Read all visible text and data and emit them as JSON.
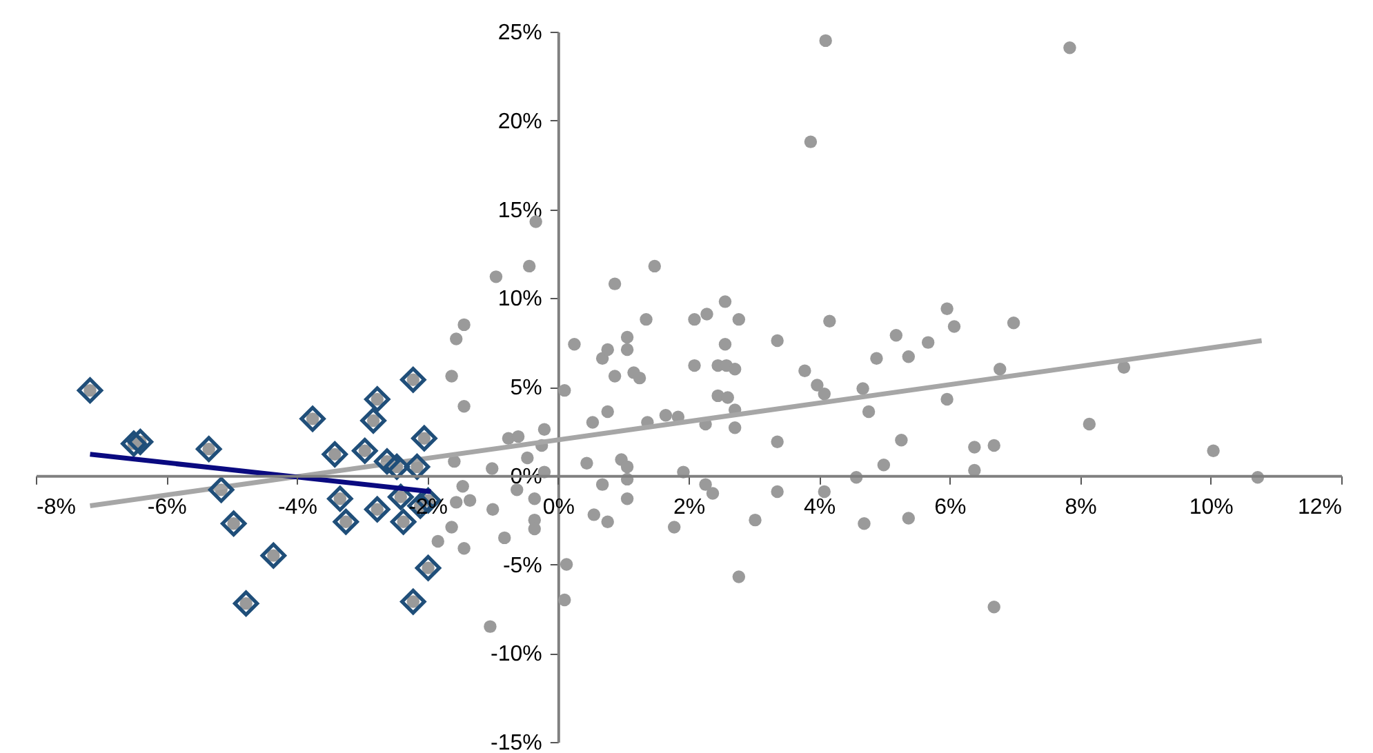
{
  "chart_data": {
    "type": "scatter",
    "xlim": [
      -8,
      12
    ],
    "ylim": [
      -15,
      25
    ],
    "xticks": [
      {
        "value": -8,
        "label": "-8%"
      },
      {
        "value": -6,
        "label": "-6%"
      },
      {
        "value": -4,
        "label": "-4%"
      },
      {
        "value": -2,
        "label": "-2%"
      },
      {
        "value": 0,
        "label": "0%"
      },
      {
        "value": 2,
        "label": "2%"
      },
      {
        "value": 4,
        "label": "4%"
      },
      {
        "value": 6,
        "label": "6%"
      },
      {
        "value": 8,
        "label": "8%"
      },
      {
        "value": 10,
        "label": "10%"
      },
      {
        "value": 12,
        "label": "12%"
      }
    ],
    "yticks": [
      {
        "value": -15,
        "label": "-15%"
      },
      {
        "value": -10,
        "label": "-10%"
      },
      {
        "value": -5,
        "label": "-5%"
      },
      {
        "value": 0,
        "label": "0%"
      },
      {
        "value": 5,
        "label": "5%"
      },
      {
        "value": 10,
        "label": "10%"
      },
      {
        "value": 15,
        "label": "15%"
      },
      {
        "value": 20,
        "label": "20%"
      },
      {
        "value": 25,
        "label": "25%"
      }
    ],
    "grid": false,
    "series": [
      {
        "type": "scatter",
        "marker": "circle",
        "color": "#9a9a9a",
        "x": [
          -7.17,
          -6.5,
          -6.4,
          -5.35,
          -5.16,
          -4.97,
          -4.36,
          -4.78,
          -3.76,
          -3.42,
          -3.34,
          -3.25,
          -2.96,
          -2.83,
          -2.77,
          -2.77,
          -2.62,
          -2.47,
          -2.22,
          -2.05,
          -2.41,
          -2.37,
          -2.11,
          -1.99,
          -1.99,
          -2.22,
          -2.16,
          -1.63,
          -1.44,
          -0.95,
          -0.44,
          -1.44,
          -1.56,
          -0.76,
          -0.61,
          -0.21,
          -0.25,
          -0.21,
          -0.47,
          -0.63,
          -1.0,
          -1.01,
          -1.35,
          -1.46,
          -1.56,
          -1.59,
          -1.63,
          -1.44,
          -1.84,
          -0.82,
          -0.36,
          -0.36,
          -0.36,
          -1.04,
          -0.34,
          0.1,
          0.13,
          0.1,
          0.25,
          0.44,
          0.53,
          0.55,
          0.76,
          0.68,
          0.76,
          0.68,
          0.76,
          0.87,
          0.87,
          0.97,
          1.06,
          1.06,
          1.06,
          1.06,
          1.06,
          1.16,
          1.25,
          1.35,
          1.37,
          1.48,
          1.65,
          1.84,
          1.92,
          1.78,
          2.09,
          2.09,
          2.28,
          2.26,
          2.26,
          2.37,
          2.45,
          2.56,
          2.56,
          2.58,
          2.71,
          2.45,
          2.6,
          2.71,
          2.71,
          2.77,
          2.77,
          3.02,
          3.36,
          3.36,
          3.36,
          3.78,
          3.97,
          4.08,
          4.16,
          4.08,
          4.57,
          4.67,
          4.76,
          4.69,
          4.88,
          4.99,
          3.87,
          4.1,
          7.84,
          5.96,
          6.07,
          6.98,
          5.18,
          5.67,
          5.37,
          6.77,
          8.67,
          5.96,
          8.14,
          5.26,
          6.38,
          6.68,
          10.04,
          6.38,
          10.72,
          5.37,
          6.68
        ],
        "values": [
          4.8,
          1.8,
          1.9,
          1.5,
          -0.8,
          -2.7,
          -4.5,
          -7.2,
          3.2,
          1.2,
          -1.3,
          -2.6,
          1.4,
          3.1,
          4.3,
          -1.9,
          0.8,
          0.5,
          5.4,
          2.1,
          -1.2,
          -2.6,
          -1.7,
          -1.4,
          -5.2,
          -7.1,
          0.5,
          5.6,
          3.9,
          11.2,
          11.8,
          8.5,
          7.7,
          2.1,
          2.2,
          2.6,
          1.7,
          0.2,
          1.0,
          -0.8,
          -1.9,
          0.4,
          -1.4,
          -0.6,
          -1.5,
          0.8,
          -2.9,
          -4.1,
          -3.7,
          -3.5,
          -1.3,
          -2.5,
          -3.0,
          -8.5,
          14.3,
          4.8,
          -5.0,
          -7.0,
          7.4,
          0.7,
          3.0,
          -2.2,
          -2.6,
          -0.5,
          3.6,
          6.6,
          7.1,
          5.6,
          10.8,
          0.9,
          0.5,
          -0.2,
          -1.3,
          7.8,
          7.1,
          5.8,
          5.5,
          8.8,
          3.0,
          11.8,
          3.4,
          3.3,
          0.2,
          -2.9,
          8.8,
          6.2,
          9.1,
          2.9,
          -0.5,
          -1.0,
          6.2,
          9.8,
          7.4,
          6.2,
          6.0,
          4.5,
          4.4,
          3.7,
          2.7,
          8.8,
          -5.7,
          -2.5,
          7.6,
          1.9,
          -0.9,
          5.9,
          5.1,
          4.6,
          8.7,
          -0.9,
          -0.1,
          4.9,
          3.6,
          -2.7,
          6.6,
          0.6,
          18.8,
          24.5,
          24.1,
          9.4,
          8.4,
          8.6,
          7.9,
          7.5,
          6.7,
          6.0,
          6.1,
          4.3,
          2.9,
          2.0,
          1.6,
          1.7,
          1.4,
          0.3,
          -0.1,
          -2.4,
          -7.4
        ]
      },
      {
        "type": "line",
        "color": "#a6a6a6",
        "x": [
          -7.17,
          10.78
        ],
        "values": [
          -1.7,
          7.6
        ]
      },
      {
        "type": "scatter",
        "marker": "diamond",
        "color": "#1f4e79",
        "x": [
          -7.17,
          -6.5,
          -6.4,
          -5.35,
          -5.16,
          -4.97,
          -4.36,
          -4.78,
          -3.76,
          -3.42,
          -3.34,
          -3.25,
          -2.96,
          -2.83,
          -2.77,
          -2.77,
          -2.62,
          -2.47,
          -2.22,
          -2.05,
          -2.41,
          -2.37,
          -2.11,
          -1.99,
          -1.99,
          -2.22,
          -2.16
        ],
        "values": [
          4.8,
          1.8,
          1.9,
          1.5,
          -0.8,
          -2.7,
          -4.5,
          -7.2,
          3.2,
          1.2,
          -1.3,
          -2.6,
          1.4,
          3.1,
          4.3,
          -1.9,
          0.8,
          0.5,
          5.4,
          2.1,
          -1.2,
          -2.6,
          -1.7,
          -1.4,
          -5.2,
          -7.1,
          0.5
        ]
      },
      {
        "type": "line",
        "color": "#0a0a80",
        "x": [
          -7.17,
          -1.95
        ],
        "values": [
          1.2,
          -0.9
        ]
      }
    ]
  }
}
